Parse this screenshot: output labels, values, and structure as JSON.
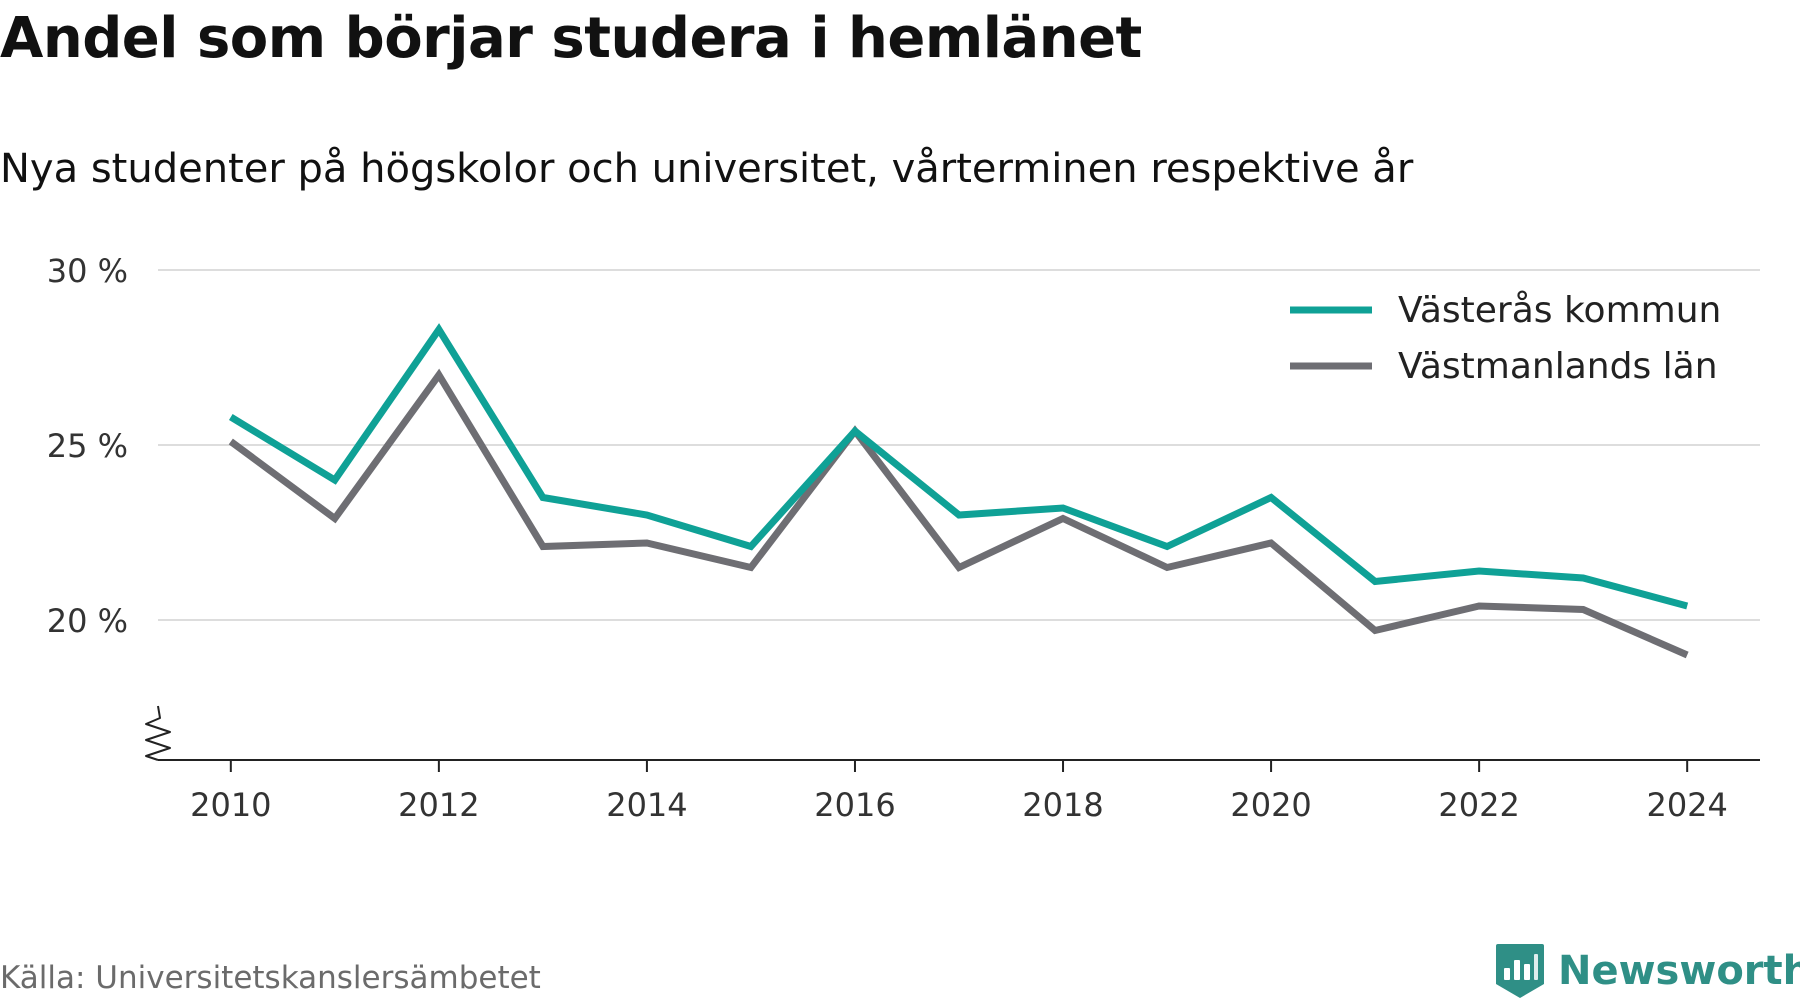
{
  "title": "Andel som börjar studera i hemlänet",
  "subtitle": "Nya studenter på högskolor och universitet, vårterminen respektive år",
  "source": "Källa: Universitetskanslersämbetet",
  "brand": {
    "name": "Newsworthy",
    "icon": "newsworthy-logo-icon",
    "color": "#2f8f86"
  },
  "chart_data": {
    "type": "line",
    "x": [
      2010,
      2011,
      2012,
      2013,
      2014,
      2015,
      2016,
      2017,
      2018,
      2019,
      2020,
      2021,
      2022,
      2023,
      2024
    ],
    "series": [
      {
        "name": "Västerås kommun",
        "color": "#0fa196",
        "values": [
          25.8,
          24.0,
          28.3,
          23.5,
          23.0,
          22.1,
          25.4,
          23.0,
          23.2,
          22.1,
          23.5,
          21.1,
          21.4,
          21.2,
          20.4
        ]
      },
      {
        "name": "Västmanlands län",
        "color": "#6e6e73",
        "values": [
          25.1,
          22.9,
          27.0,
          22.1,
          22.2,
          21.5,
          25.4,
          21.5,
          22.9,
          21.5,
          22.2,
          19.7,
          20.4,
          20.3,
          19.0
        ]
      }
    ],
    "yticks": [
      20,
      25,
      30
    ],
    "ytick_labels": [
      "20 %",
      "25 %",
      "30 %"
    ],
    "xticks": [
      2010,
      2012,
      2014,
      2016,
      2018,
      2020,
      2022,
      2024
    ],
    "xtick_labels": [
      "2010",
      "2012",
      "2014",
      "2016",
      "2018",
      "2020",
      "2022",
      "2024"
    ],
    "ylim": [
      16,
      30
    ],
    "xlim": [
      2009.3,
      2024.7
    ],
    "y_axis_break": true,
    "grid": "horizontal",
    "legend_position": "top-right"
  }
}
